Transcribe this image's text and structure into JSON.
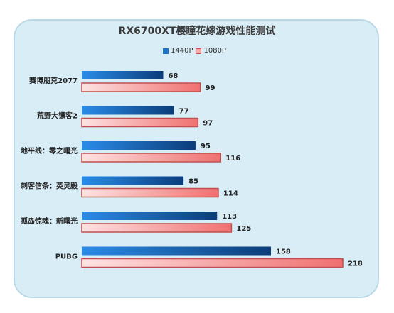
{
  "chart_data": {
    "type": "bar",
    "orientation": "horizontal",
    "title": "RX6700XT樱瞳花嫁游戏性能测试",
    "categories": [
      "赛博朋克2077",
      "荒野大镖客2",
      "地平线：零之曙光",
      "刺客信条：英灵殿",
      "孤岛惊魂：新曙光",
      "PUBG"
    ],
    "series": [
      {
        "name": "1440P",
        "values": [
          68,
          77,
          95,
          85,
          113,
          158
        ],
        "color": "#1f73c9"
      },
      {
        "name": "1080P",
        "values": [
          99,
          97,
          116,
          114,
          125,
          218
        ],
        "color": "#f08080"
      }
    ],
    "xlim": [
      0,
      218
    ],
    "legend_position": "top",
    "grid": false
  }
}
